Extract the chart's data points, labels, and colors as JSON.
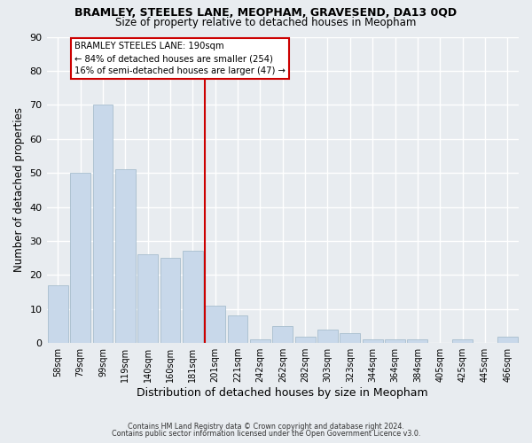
{
  "title": "BRAMLEY, STEELES LANE, MEOPHAM, GRAVESEND, DA13 0QD",
  "subtitle": "Size of property relative to detached houses in Meopham",
  "xlabel": "Distribution of detached houses by size in Meopham",
  "ylabel": "Number of detached properties",
  "bar_color": "#c8d8ea",
  "bar_edge_color": "#a8bece",
  "categories": [
    "58sqm",
    "79sqm",
    "99sqm",
    "119sqm",
    "140sqm",
    "160sqm",
    "181sqm",
    "201sqm",
    "221sqm",
    "242sqm",
    "262sqm",
    "282sqm",
    "303sqm",
    "323sqm",
    "344sqm",
    "364sqm",
    "384sqm",
    "405sqm",
    "425sqm",
    "445sqm",
    "466sqm"
  ],
  "values": [
    17,
    50,
    70,
    51,
    26,
    25,
    27,
    11,
    8,
    1,
    5,
    2,
    4,
    3,
    1,
    1,
    1,
    0,
    1,
    0,
    2
  ],
  "vline_index": 7,
  "vline_color": "#cc0000",
  "annotation_title": "BRAMLEY STEELES LANE: 190sqm",
  "annotation_line1": "← 84% of detached houses are smaller (254)",
  "annotation_line2": "16% of semi-detached houses are larger (47) →",
  "annotation_box_color": "#ffffff",
  "annotation_box_edge": "#cc0000",
  "ylim": [
    0,
    90
  ],
  "yticks": [
    0,
    10,
    20,
    30,
    40,
    50,
    60,
    70,
    80,
    90
  ],
  "bg_color": "#e8ecf0",
  "plot_bg_color": "#e8ecf0",
  "footer1": "Contains HM Land Registry data © Crown copyright and database right 2024.",
  "footer2": "Contains public sector information licensed under the Open Government Licence v3.0.",
  "title_fontsize": 9,
  "subtitle_fontsize": 8.5,
  "grid_color": "#ffffff"
}
